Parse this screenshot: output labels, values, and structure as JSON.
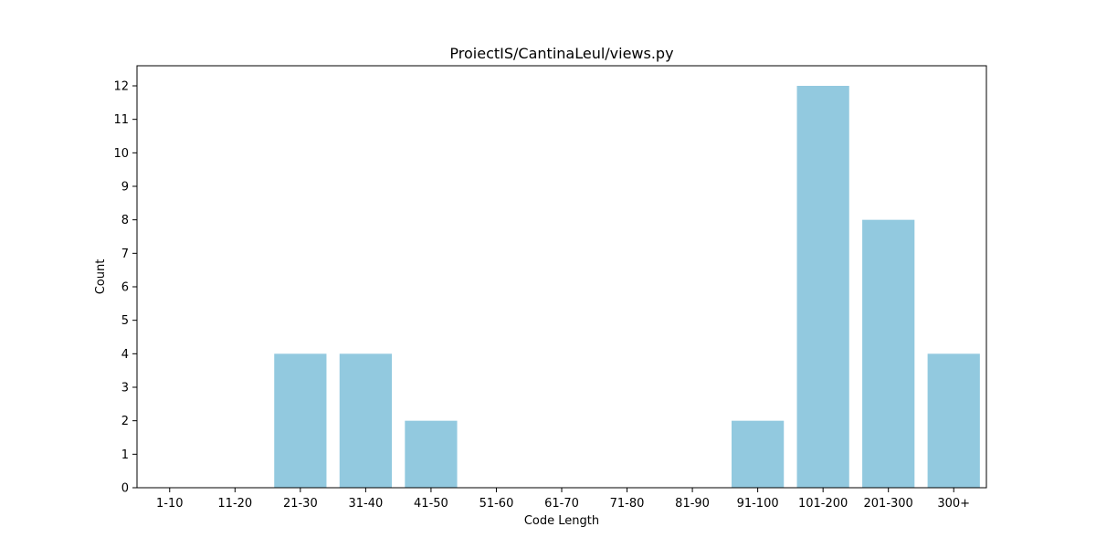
{
  "chart_data": {
    "type": "bar",
    "title": "ProiectIS/CantinaLeul/views.py",
    "xlabel": "Code Length",
    "ylabel": "Count",
    "categories": [
      "1-10",
      "11-20",
      "21-30",
      "31-40",
      "41-50",
      "51-60",
      "61-70",
      "71-80",
      "81-90",
      "91-100",
      "101-200",
      "201-300",
      "300+"
    ],
    "values": [
      0,
      0,
      4,
      4,
      2,
      0,
      0,
      0,
      0,
      2,
      12,
      8,
      4
    ],
    "ylim": [
      0,
      12.6
    ],
    "yticks": [
      0,
      1,
      2,
      3,
      4,
      5,
      6,
      7,
      8,
      9,
      10,
      11,
      12
    ],
    "grid": false,
    "legend": "none",
    "bar_color": "#92c9df"
  }
}
